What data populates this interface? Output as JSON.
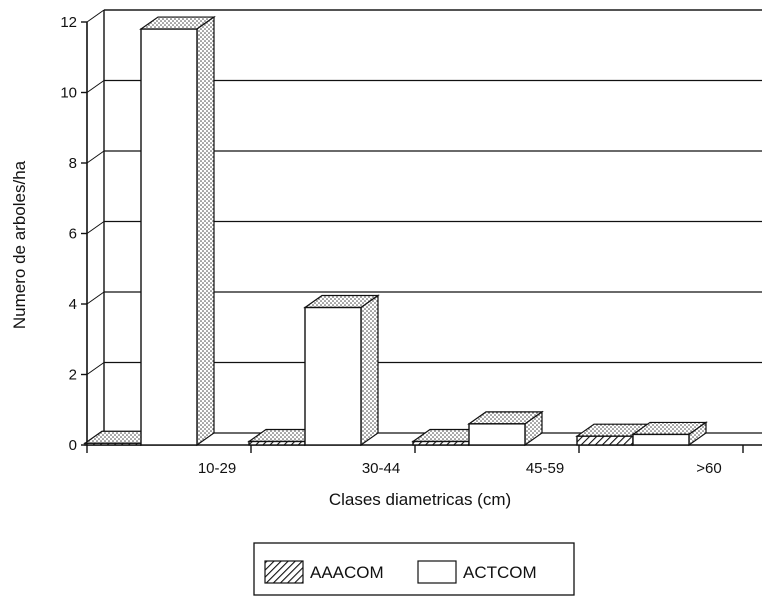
{
  "chart_data": {
    "type": "bar",
    "style": "3d-grouped-bar",
    "categories": [
      "10-29",
      "30-44",
      "45-59",
      ">60"
    ],
    "series": [
      {
        "name": "AAACOM",
        "values": [
          0.05,
          0.1,
          0.1,
          0.25
        ],
        "fill": "hatched"
      },
      {
        "name": "ACTCOM",
        "values": [
          11.8,
          3.9,
          0.6,
          0.3
        ],
        "fill": "white"
      }
    ],
    "xlabel": "Clases diametricas (cm)",
    "ylabel": "Numero de arboles/ha",
    "ylim": [
      0,
      12
    ],
    "yticks": [
      0,
      2,
      4,
      6,
      8,
      10,
      12
    ],
    "grid": true,
    "legend_position": "bottom-center",
    "colors": {
      "ink": "#111111",
      "background": "#ffffff",
      "bar_face": "#ffffff"
    }
  }
}
